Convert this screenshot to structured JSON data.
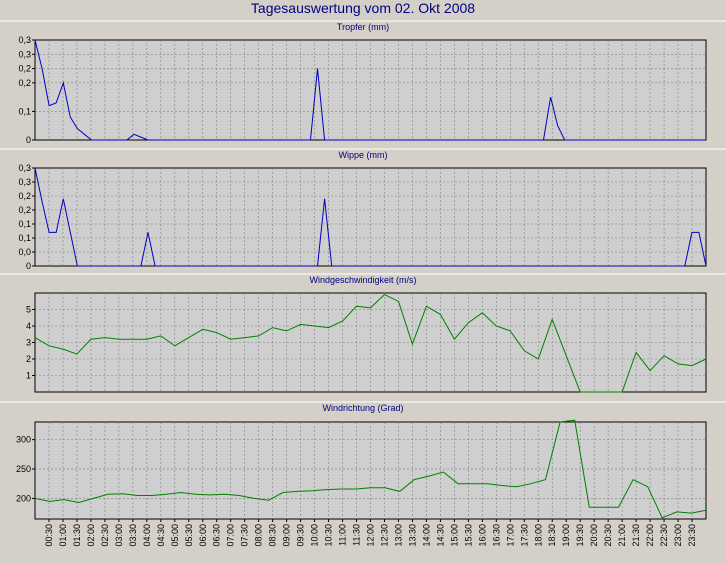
{
  "page_title": "Tagesauswertung vom 02. Okt 2008",
  "x_ticks": [
    "00:30",
    "01:00",
    "01:30",
    "02:00",
    "02:30",
    "03:00",
    "03:30",
    "04:00",
    "04:30",
    "05:00",
    "05:30",
    "06:00",
    "06:30",
    "07:00",
    "07:30",
    "08:00",
    "08:30",
    "09:00",
    "09:30",
    "10:00",
    "10:30",
    "11:00",
    "11:30",
    "12:00",
    "12:30",
    "13:00",
    "13:30",
    "14:00",
    "14:30",
    "15:00",
    "15:30",
    "16:00",
    "16:30",
    "17:00",
    "17:30",
    "18:00",
    "18:30",
    "19:00",
    "19:30",
    "20:00",
    "20:30",
    "21:00",
    "21:30",
    "22:00",
    "22:30",
    "23:00",
    "23:30"
  ],
  "colors": {
    "background": "#d4d0c8",
    "plot_bg": "#cfcfcf",
    "title": "#000080",
    "blue_series": "#0000c0",
    "green_series": "#008000",
    "grid": "#808080"
  },
  "chart_data": [
    {
      "type": "line",
      "title": "Tropfer (mm)",
      "ytick_labels": [
        "0",
        "0,1",
        "0,2",
        "0,2",
        "0,3",
        "0,3"
      ],
      "ytick_values": [
        0,
        0.1,
        0.2,
        0.25,
        0.3,
        0.35
      ],
      "ylim": [
        0,
        0.35
      ],
      "color": "#0000c0",
      "values": [
        0.35,
        0.25,
        0.12,
        0.13,
        0.2,
        0.08,
        0.04,
        0.02,
        0,
        0,
        0,
        0,
        0,
        0,
        0.02,
        0.01,
        0,
        0,
        0,
        0,
        0,
        0,
        0,
        0,
        0,
        0,
        0,
        0,
        0,
        0,
        0,
        0,
        0,
        0,
        0,
        0,
        0,
        0,
        0,
        0,
        0.25,
        0,
        0,
        0,
        0,
        0,
        0,
        0,
        0,
        0,
        0,
        0,
        0,
        0,
        0,
        0,
        0,
        0,
        0,
        0,
        0,
        0,
        0,
        0,
        0,
        0,
        0,
        0,
        0,
        0,
        0,
        0,
        0,
        0.15,
        0.05,
        0,
        0,
        0,
        0,
        0,
        0,
        0,
        0,
        0,
        0,
        0,
        0,
        0,
        0,
        0,
        0,
        0,
        0,
        0,
        0,
        0
      ],
      "grid": true
    },
    {
      "type": "line",
      "title": "Wippe (mm)",
      "ytick_labels": [
        "0",
        "0,0",
        "0,1",
        "0,1",
        "0,2",
        "0,2",
        "0,3",
        "0,3"
      ],
      "ytick_values": [
        0,
        0.05,
        0.1,
        0.15,
        0.2,
        0.25,
        0.3,
        0.35
      ],
      "ylim": [
        0,
        0.35
      ],
      "color": "#0000c0",
      "values": [
        0.35,
        0.23,
        0.12,
        0.12,
        0.24,
        0.12,
        0,
        0,
        0,
        0,
        0,
        0,
        0,
        0,
        0,
        0,
        0.12,
        0,
        0,
        0,
        0,
        0,
        0,
        0,
        0,
        0,
        0,
        0,
        0,
        0,
        0,
        0,
        0,
        0,
        0,
        0,
        0,
        0,
        0,
        0,
        0,
        0.24,
        0,
        0,
        0,
        0,
        0,
        0,
        0,
        0,
        0,
        0,
        0,
        0,
        0,
        0,
        0,
        0,
        0,
        0,
        0,
        0,
        0,
        0,
        0,
        0,
        0,
        0,
        0,
        0,
        0,
        0,
        0,
        0,
        0,
        0,
        0,
        0,
        0,
        0,
        0,
        0,
        0,
        0,
        0,
        0,
        0,
        0,
        0,
        0,
        0,
        0,
        0,
        0.12,
        0.12,
        0
      ],
      "grid": true
    },
    {
      "type": "line",
      "title": "Windgeschwindigkeit (m/s)",
      "ytick_labels": [
        "1",
        "2",
        "3",
        "4",
        "5"
      ],
      "ytick_values": [
        1,
        2,
        3,
        4,
        5
      ],
      "ylim": [
        0,
        6
      ],
      "color": "#008000",
      "values": [
        3.3,
        2.8,
        2.6,
        2.3,
        3.2,
        3.3,
        3.2,
        3.2,
        3.2,
        3.4,
        2.8,
        3.3,
        3.8,
        3.6,
        3.2,
        3.3,
        3.4,
        3.9,
        3.7,
        4.1,
        4.0,
        3.9,
        4.3,
        5.2,
        5.1,
        5.9,
        5.5,
        2.9,
        5.2,
        4.7,
        3.2,
        4.2,
        4.8,
        4.0,
        3.7,
        2.5,
        2.0,
        4.4,
        2.2,
        0,
        0,
        0,
        0,
        2.4,
        1.3,
        2.2,
        1.7,
        1.6,
        2.0
      ],
      "grid": true
    },
    {
      "type": "line",
      "title": "Windrichtung (Grad)",
      "ytick_labels": [
        "200",
        "250",
        "300"
      ],
      "ytick_values": [
        200,
        250,
        300
      ],
      "ylim": [
        165,
        330
      ],
      "color": "#008000",
      "values": [
        200,
        195,
        198,
        193,
        200,
        207,
        208,
        205,
        205,
        207,
        210,
        207,
        206,
        207,
        205,
        200,
        197,
        210,
        212,
        213,
        215,
        216,
        216,
        218,
        218,
        212,
        232,
        238,
        245,
        225,
        225,
        225,
        222,
        220,
        225,
        232,
        330,
        333,
        185,
        185,
        185,
        232,
        220,
        167,
        177,
        175,
        180
      ],
      "grid": true
    }
  ]
}
